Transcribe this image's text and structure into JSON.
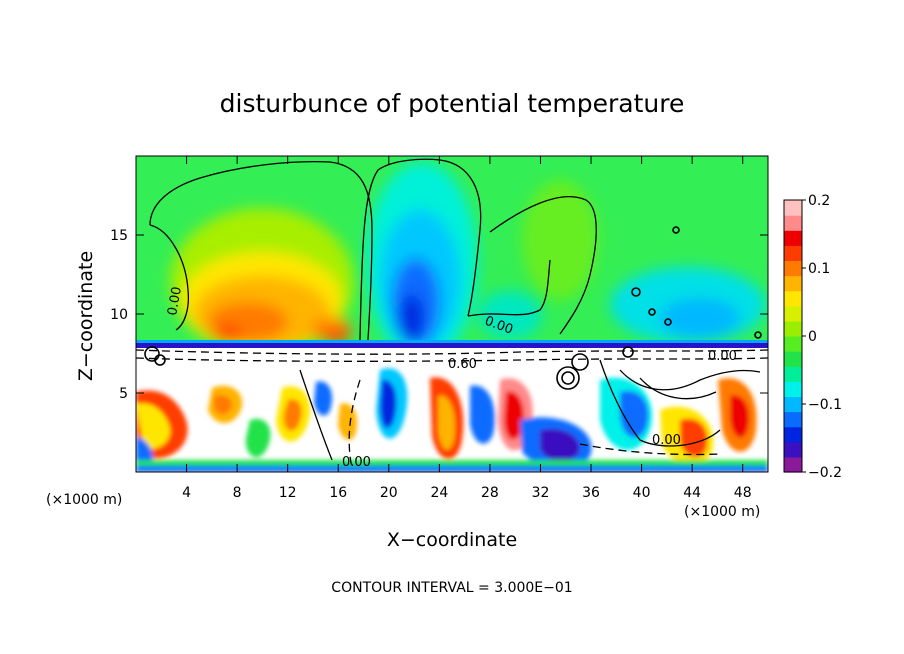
{
  "chart_data": {
    "type": "heatmap",
    "title": "disturbunce of potential temperature",
    "xlabel": "X−coordinate",
    "ylabel": "Z−coordinate",
    "x_unit_left": "(×1000 m)",
    "x_unit_right": "(×1000 m)",
    "footer": "CONTOUR INTERVAL = 3.000E−01",
    "xlim": [
      0,
      50
    ],
    "ylim": [
      0,
      20
    ],
    "xticks": [
      4,
      8,
      12,
      16,
      20,
      24,
      28,
      32,
      36,
      40,
      44,
      48
    ],
    "xtick_labels": [
      "4",
      "8",
      "12",
      "16",
      "20",
      "24",
      "28",
      "32",
      "36",
      "40",
      "44",
      "48"
    ],
    "yticks": [
      5,
      10,
      15
    ],
    "ytick_labels": [
      "5",
      "10",
      "15"
    ],
    "colorbar": {
      "range": [
        -0.2,
        0.2
      ],
      "tick_values": [
        0.2,
        0.1,
        0,
        -0.1,
        -0.2
      ],
      "tick_labels": [
        "0.2",
        "0.1",
        "0",
        "−0.1",
        "−0.2"
      ],
      "colors": [
        "#8b1a9b",
        "#3a10c0",
        "#0025e0",
        "#0a6cff",
        "#00b8ff",
        "#00f0ea",
        "#00ee9a",
        "#22e24a",
        "#55ee22",
        "#9aee00",
        "#d8f000",
        "#ffe600",
        "#ffb400",
        "#ff7a00",
        "#ff3c00",
        "#ee0000",
        "#ff8a8a",
        "#ffc0c0"
      ]
    },
    "contour_labels": [
      "0.00",
      "0.00",
      "0.60",
      "0.00",
      "0.00",
      "0.00"
    ],
    "background_color": "#33ee55"
  }
}
